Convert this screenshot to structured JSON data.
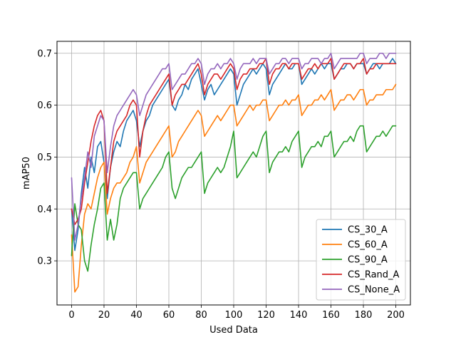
{
  "chart_data": {
    "type": "line",
    "xlabel": "Used Data",
    "ylabel": "mAP50",
    "xlim": [
      -9,
      209
    ],
    "ylim": [
      0.215,
      0.723
    ],
    "xticks": [
      0,
      20,
      40,
      60,
      80,
      100,
      120,
      140,
      160,
      180,
      200
    ],
    "yticks": [
      0.3,
      0.4,
      0.5,
      0.6,
      0.7
    ],
    "ytick_labels": [
      "0.3",
      "0.4",
      "0.5",
      "0.6",
      "0.7"
    ],
    "grid": true,
    "legend_position": "lower-right",
    "series": [
      {
        "name": "CS_30_A",
        "color": "#1f77b4",
        "x": [
          0,
          2,
          4,
          6,
          8,
          10,
          12,
          14,
          16,
          18,
          20,
          22,
          24,
          26,
          28,
          30,
          32,
          34,
          36,
          38,
          40,
          42,
          44,
          46,
          48,
          50,
          52,
          54,
          56,
          58,
          60,
          62,
          64,
          66,
          68,
          70,
          72,
          74,
          76,
          78,
          80,
          82,
          84,
          86,
          88,
          90,
          92,
          94,
          96,
          98,
          100,
          102,
          104,
          106,
          108,
          110,
          112,
          114,
          116,
          118,
          120,
          122,
          124,
          126,
          128,
          130,
          132,
          134,
          136,
          138,
          140,
          142,
          144,
          146,
          148,
          150,
          152,
          154,
          156,
          158,
          160,
          162,
          164,
          166,
          168,
          170,
          172,
          174,
          176,
          178,
          180,
          182,
          184,
          186,
          188,
          190,
          192,
          194,
          196,
          198,
          200
        ],
        "values": [
          0.4,
          0.32,
          0.36,
          0.43,
          0.48,
          0.44,
          0.5,
          0.47,
          0.52,
          0.53,
          0.49,
          0.42,
          0.48,
          0.51,
          0.53,
          0.52,
          0.55,
          0.57,
          0.58,
          0.59,
          0.57,
          0.52,
          0.55,
          0.57,
          0.58,
          0.6,
          0.61,
          0.62,
          0.63,
          0.64,
          0.65,
          0.6,
          0.59,
          0.61,
          0.62,
          0.64,
          0.63,
          0.65,
          0.66,
          0.67,
          0.64,
          0.61,
          0.63,
          0.64,
          0.62,
          0.63,
          0.64,
          0.65,
          0.66,
          0.67,
          0.66,
          0.6,
          0.62,
          0.64,
          0.65,
          0.66,
          0.67,
          0.66,
          0.67,
          0.68,
          0.67,
          0.62,
          0.64,
          0.65,
          0.66,
          0.67,
          0.68,
          0.67,
          0.67,
          0.68,
          0.68,
          0.64,
          0.65,
          0.66,
          0.67,
          0.66,
          0.67,
          0.68,
          0.67,
          0.68,
          0.68,
          0.65,
          0.66,
          0.67,
          0.67,
          0.68,
          0.68,
          0.67,
          0.68,
          0.68,
          0.68,
          0.66,
          0.67,
          0.68,
          0.68,
          0.67,
          0.68,
          0.68,
          0.68,
          0.69,
          0.68
        ]
      },
      {
        "name": "CS_60_A",
        "color": "#ff7f0e",
        "x": [
          0,
          2,
          4,
          6,
          8,
          10,
          12,
          14,
          16,
          18,
          20,
          22,
          24,
          26,
          28,
          30,
          32,
          34,
          36,
          38,
          40,
          42,
          44,
          46,
          48,
          50,
          52,
          54,
          56,
          58,
          60,
          62,
          64,
          66,
          68,
          70,
          72,
          74,
          76,
          78,
          80,
          82,
          84,
          86,
          88,
          90,
          92,
          94,
          96,
          98,
          100,
          102,
          104,
          106,
          108,
          110,
          112,
          114,
          116,
          118,
          120,
          122,
          124,
          126,
          128,
          130,
          132,
          134,
          136,
          138,
          140,
          142,
          144,
          146,
          148,
          150,
          152,
          154,
          156,
          158,
          160,
          162,
          164,
          166,
          168,
          170,
          172,
          174,
          176,
          178,
          180,
          182,
          184,
          186,
          188,
          190,
          192,
          194,
          196,
          198,
          200
        ],
        "values": [
          0.35,
          0.24,
          0.25,
          0.33,
          0.39,
          0.41,
          0.4,
          0.43,
          0.46,
          0.48,
          0.49,
          0.39,
          0.42,
          0.44,
          0.45,
          0.45,
          0.46,
          0.47,
          0.49,
          0.5,
          0.52,
          0.45,
          0.47,
          0.49,
          0.5,
          0.51,
          0.52,
          0.53,
          0.54,
          0.55,
          0.56,
          0.5,
          0.51,
          0.53,
          0.54,
          0.55,
          0.56,
          0.57,
          0.58,
          0.59,
          0.58,
          0.54,
          0.55,
          0.56,
          0.57,
          0.58,
          0.57,
          0.58,
          0.59,
          0.6,
          0.6,
          0.56,
          0.57,
          0.58,
          0.59,
          0.6,
          0.59,
          0.6,
          0.6,
          0.61,
          0.61,
          0.57,
          0.58,
          0.59,
          0.6,
          0.6,
          0.61,
          0.6,
          0.61,
          0.61,
          0.62,
          0.58,
          0.59,
          0.6,
          0.6,
          0.61,
          0.61,
          0.62,
          0.61,
          0.62,
          0.63,
          0.59,
          0.6,
          0.61,
          0.61,
          0.62,
          0.62,
          0.61,
          0.62,
          0.63,
          0.63,
          0.6,
          0.61,
          0.61,
          0.62,
          0.62,
          0.62,
          0.63,
          0.63,
          0.63,
          0.64
        ]
      },
      {
        "name": "CS_90_A",
        "color": "#2ca02c",
        "x": [
          0,
          2,
          4,
          6,
          8,
          10,
          12,
          14,
          16,
          18,
          20,
          22,
          24,
          26,
          28,
          30,
          32,
          34,
          36,
          38,
          40,
          42,
          44,
          46,
          48,
          50,
          52,
          54,
          56,
          58,
          60,
          62,
          64,
          66,
          68,
          70,
          72,
          74,
          76,
          78,
          80,
          82,
          84,
          86,
          88,
          90,
          92,
          94,
          96,
          98,
          100,
          102,
          104,
          106,
          108,
          110,
          112,
          114,
          116,
          118,
          120,
          122,
          124,
          126,
          128,
          130,
          132,
          134,
          136,
          138,
          140,
          142,
          144,
          146,
          148,
          150,
          152,
          154,
          156,
          158,
          160,
          162,
          164,
          166,
          168,
          170,
          172,
          174,
          176,
          178,
          180,
          182,
          184,
          186,
          188,
          190,
          192,
          194,
          196,
          198,
          200
        ],
        "values": [
          0.31,
          0.41,
          0.37,
          0.36,
          0.3,
          0.28,
          0.33,
          0.37,
          0.4,
          0.44,
          0.45,
          0.34,
          0.38,
          0.34,
          0.37,
          0.42,
          0.44,
          0.45,
          0.46,
          0.47,
          0.47,
          0.4,
          0.42,
          0.43,
          0.44,
          0.45,
          0.46,
          0.47,
          0.48,
          0.5,
          0.51,
          0.44,
          0.42,
          0.44,
          0.46,
          0.47,
          0.48,
          0.48,
          0.49,
          0.5,
          0.51,
          0.43,
          0.45,
          0.46,
          0.47,
          0.48,
          0.47,
          0.48,
          0.5,
          0.52,
          0.55,
          0.46,
          0.47,
          0.48,
          0.49,
          0.5,
          0.51,
          0.5,
          0.52,
          0.54,
          0.55,
          0.47,
          0.49,
          0.5,
          0.51,
          0.51,
          0.52,
          0.51,
          0.53,
          0.54,
          0.55,
          0.48,
          0.5,
          0.51,
          0.52,
          0.52,
          0.53,
          0.52,
          0.54,
          0.54,
          0.55,
          0.5,
          0.51,
          0.52,
          0.53,
          0.53,
          0.54,
          0.53,
          0.55,
          0.56,
          0.56,
          0.51,
          0.52,
          0.53,
          0.54,
          0.54,
          0.55,
          0.54,
          0.55,
          0.56,
          0.56
        ]
      },
      {
        "name": "CS_Rand_A",
        "color": "#d62728",
        "x": [
          0,
          2,
          4,
          6,
          8,
          10,
          12,
          14,
          16,
          18,
          20,
          22,
          24,
          26,
          28,
          30,
          32,
          34,
          36,
          38,
          40,
          42,
          44,
          46,
          48,
          50,
          52,
          54,
          56,
          58,
          60,
          62,
          64,
          66,
          68,
          70,
          72,
          74,
          76,
          78,
          80,
          82,
          84,
          86,
          88,
          90,
          92,
          94,
          96,
          98,
          100,
          102,
          104,
          106,
          108,
          110,
          112,
          114,
          116,
          118,
          120,
          122,
          124,
          126,
          128,
          130,
          132,
          134,
          136,
          138,
          140,
          142,
          144,
          146,
          148,
          150,
          152,
          154,
          156,
          158,
          160,
          162,
          164,
          166,
          168,
          170,
          172,
          174,
          176,
          178,
          180,
          182,
          184,
          186,
          188,
          190,
          192,
          194,
          196,
          198,
          200
        ],
        "values": [
          0.4,
          0.37,
          0.38,
          0.4,
          0.45,
          0.49,
          0.53,
          0.56,
          0.58,
          0.59,
          0.57,
          0.43,
          0.48,
          0.53,
          0.55,
          0.56,
          0.57,
          0.58,
          0.6,
          0.61,
          0.6,
          0.5,
          0.55,
          0.58,
          0.6,
          0.61,
          0.62,
          0.63,
          0.64,
          0.65,
          0.66,
          0.6,
          0.62,
          0.63,
          0.64,
          0.64,
          0.65,
          0.66,
          0.67,
          0.68,
          0.66,
          0.62,
          0.64,
          0.65,
          0.66,
          0.66,
          0.65,
          0.66,
          0.67,
          0.68,
          0.67,
          0.63,
          0.65,
          0.66,
          0.66,
          0.67,
          0.67,
          0.67,
          0.68,
          0.68,
          0.69,
          0.64,
          0.66,
          0.67,
          0.67,
          0.68,
          0.68,
          0.67,
          0.68,
          0.68,
          0.68,
          0.65,
          0.66,
          0.67,
          0.67,
          0.68,
          0.67,
          0.68,
          0.68,
          0.68,
          0.69,
          0.65,
          0.66,
          0.67,
          0.68,
          0.68,
          0.68,
          0.67,
          0.68,
          0.68,
          0.69,
          0.66,
          0.67,
          0.67,
          0.68,
          0.68,
          0.68,
          0.68,
          0.68,
          0.68,
          0.68
        ]
      },
      {
        "name": "CS_None_A",
        "color": "#9467bd",
        "x": [
          0,
          2,
          4,
          6,
          8,
          10,
          12,
          14,
          16,
          18,
          20,
          22,
          24,
          26,
          28,
          30,
          32,
          34,
          36,
          38,
          40,
          42,
          44,
          46,
          48,
          50,
          52,
          54,
          56,
          58,
          60,
          62,
          64,
          66,
          68,
          70,
          72,
          74,
          76,
          78,
          80,
          82,
          84,
          86,
          88,
          90,
          92,
          94,
          96,
          98,
          100,
          102,
          104,
          106,
          108,
          110,
          112,
          114,
          116,
          118,
          120,
          122,
          124,
          126,
          128,
          130,
          132,
          134,
          136,
          138,
          140,
          142,
          144,
          146,
          148,
          150,
          152,
          154,
          156,
          158,
          160,
          162,
          164,
          166,
          168,
          170,
          172,
          174,
          176,
          178,
          180,
          182,
          184,
          186,
          188,
          190,
          192,
          194,
          196,
          198,
          200
        ],
        "values": [
          0.46,
          0.34,
          0.37,
          0.42,
          0.46,
          0.51,
          0.48,
          0.54,
          0.56,
          0.58,
          0.57,
          0.47,
          0.52,
          0.56,
          0.58,
          0.59,
          0.6,
          0.61,
          0.62,
          0.63,
          0.62,
          0.58,
          0.6,
          0.62,
          0.63,
          0.64,
          0.65,
          0.66,
          0.67,
          0.67,
          0.68,
          0.63,
          0.64,
          0.65,
          0.66,
          0.66,
          0.67,
          0.68,
          0.68,
          0.69,
          0.68,
          0.64,
          0.66,
          0.67,
          0.67,
          0.68,
          0.67,
          0.68,
          0.68,
          0.69,
          0.68,
          0.65,
          0.67,
          0.68,
          0.68,
          0.68,
          0.69,
          0.68,
          0.69,
          0.69,
          0.69,
          0.66,
          0.67,
          0.68,
          0.68,
          0.69,
          0.69,
          0.68,
          0.69,
          0.69,
          0.69,
          0.67,
          0.68,
          0.68,
          0.69,
          0.69,
          0.69,
          0.68,
          0.69,
          0.69,
          0.7,
          0.67,
          0.68,
          0.69,
          0.69,
          0.69,
          0.69,
          0.69,
          0.69,
          0.7,
          0.7,
          0.68,
          0.69,
          0.69,
          0.69,
          0.7,
          0.7,
          0.69,
          0.7,
          0.7,
          0.7
        ]
      }
    ]
  }
}
